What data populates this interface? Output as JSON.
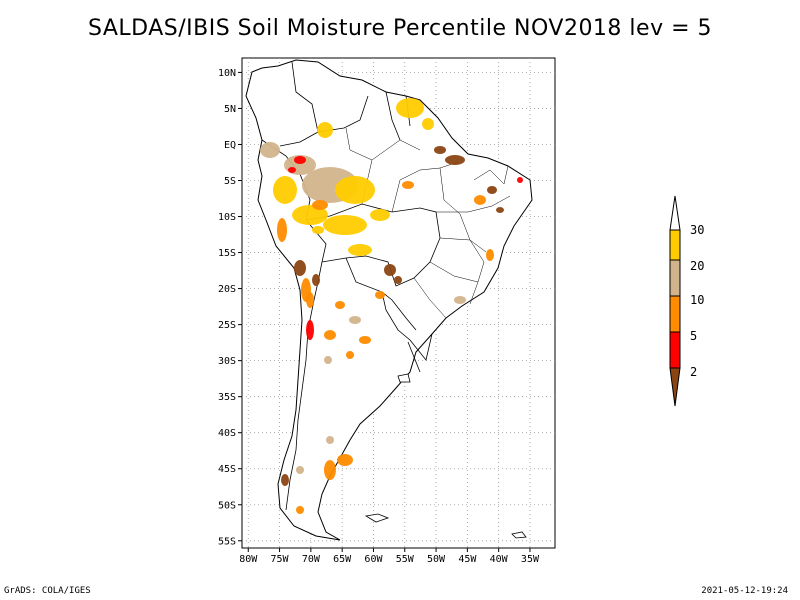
{
  "title": "SALDAS/IBIS Soil Moisture Percentile NOV2018 lev = 5",
  "footer": {
    "left": "GrADS: COLA/IGES",
    "right": "2021-05-12-19:24"
  },
  "map": {
    "lon_range": [
      -81,
      -31
    ],
    "lat_range": [
      -56,
      12
    ],
    "lon_ticks": [
      "80W",
      "75W",
      "70W",
      "65W",
      "60W",
      "55W",
      "50W",
      "45W",
      "40W",
      "35W"
    ],
    "lat_ticks": [
      "10N",
      "5N",
      "EQ",
      "5S",
      "10S",
      "15S",
      "20S",
      "25S",
      "30S",
      "35S",
      "40S",
      "45S",
      "50S",
      "55S"
    ],
    "grid": "dotted"
  },
  "legend": {
    "labels": [
      "30",
      "20",
      "10",
      "5",
      "2"
    ],
    "colors": {
      "above30": "#ffffff",
      "20-30": "#ffcc00",
      "10-20": "#d2b48c",
      "5-10": "#ff8c00",
      "2-5": "#ff0000",
      "below2": "#8b4513"
    }
  }
}
